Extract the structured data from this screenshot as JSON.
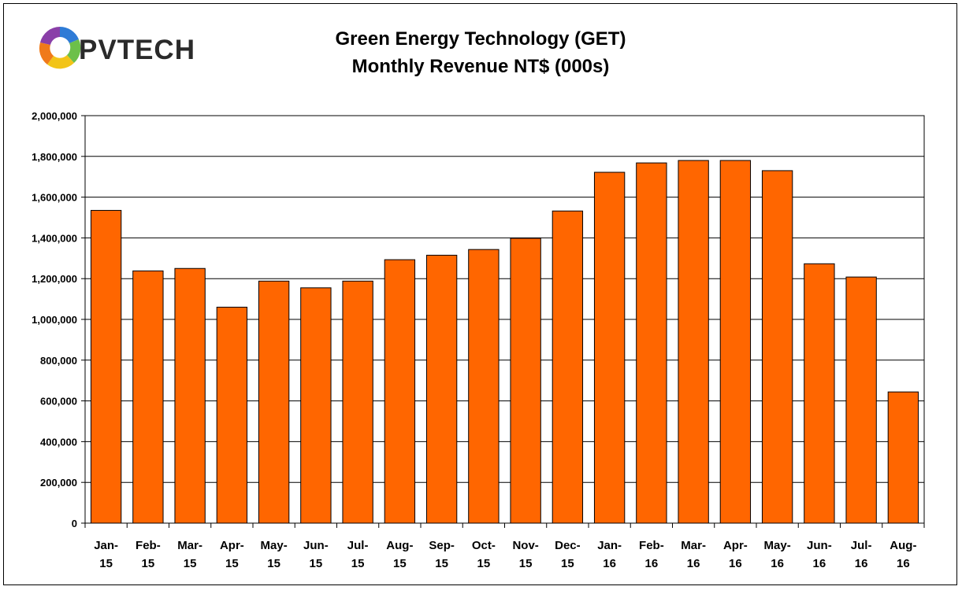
{
  "logo": {
    "text": "PVTECH",
    "text_color": "#2a2a2a"
  },
  "chart_data": {
    "type": "bar",
    "title": "Green Energy Technology (GET)",
    "subtitle": "Monthly Revenue NT$ (000s)",
    "xlabel": "",
    "ylabel": "",
    "ylim": [
      0,
      2000000
    ],
    "yticks": [
      0,
      200000,
      400000,
      600000,
      800000,
      1000000,
      1200000,
      1400000,
      1600000,
      1800000,
      2000000
    ],
    "ytick_labels": [
      "0",
      "200,000",
      "400,000",
      "600,000",
      "800,000",
      "1,000,000",
      "1,200,000",
      "1,400,000",
      "1,600,000",
      "1,800,000",
      "2,000,000"
    ],
    "grid": true,
    "legend": "none",
    "bar_color": "#ff6600",
    "categories": [
      [
        "Jan-",
        "15"
      ],
      [
        "Feb-",
        "15"
      ],
      [
        "Mar-",
        "15"
      ],
      [
        "Apr-",
        "15"
      ],
      [
        "May-",
        "15"
      ],
      [
        "Jun-",
        "15"
      ],
      [
        "Jul-",
        "15"
      ],
      [
        "Aug-",
        "15"
      ],
      [
        "Sep-",
        "15"
      ],
      [
        "Oct-",
        "15"
      ],
      [
        "Nov-",
        "15"
      ],
      [
        "Dec-",
        "15"
      ],
      [
        "Jan-",
        "16"
      ],
      [
        "Feb-",
        "16"
      ],
      [
        "Mar-",
        "16"
      ],
      [
        "Apr-",
        "16"
      ],
      [
        "May-",
        "16"
      ],
      [
        "Jun-",
        "16"
      ],
      [
        "Jul-",
        "16"
      ],
      [
        "Aug-",
        "16"
      ]
    ],
    "values": [
      1535000,
      1238000,
      1250000,
      1060000,
      1188000,
      1155000,
      1188000,
      1293000,
      1315000,
      1343000,
      1398000,
      1532000,
      1722000,
      1768000,
      1780000,
      1780000,
      1730000,
      1273000,
      1208000,
      644000
    ]
  }
}
